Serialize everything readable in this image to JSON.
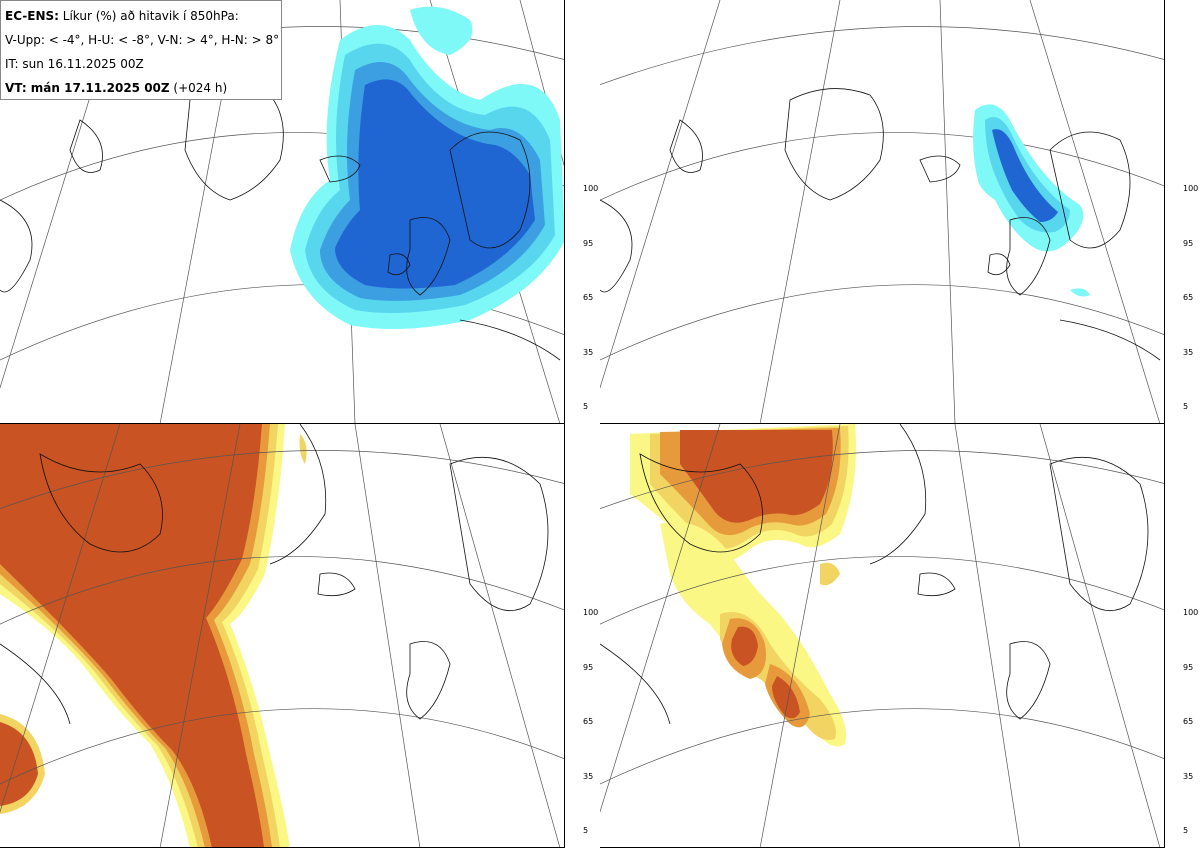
{
  "legend": {
    "line1_bold": "EC-ENS:",
    "line1_rest": " Líkur (%) að hitavik í 850hPa:",
    "line2": "V-Upp: < -4°, H-U: < -8°, V-N: > 4°, H-N: > 8°",
    "line3": "IT: sun 16.11.2025 00Z",
    "line4_bold": "VT: mán 17.11.2025 00Z",
    "line4_rest": " (+024 h)"
  },
  "colorbar_ticks": [
    "100",
    "95",
    "65",
    "35",
    "5"
  ],
  "colors": {
    "cold": [
      "#7ff8f8",
      "#58d6ee",
      "#3b9fe2",
      "#1f66d3"
    ],
    "warm": [
      "#fbf784",
      "#f2d462",
      "#e79a3c",
      "#c95322"
    ]
  },
  "panels": [
    {
      "id": "v-upp",
      "name": "top-left",
      "scheme": "cold"
    },
    {
      "id": "h-u",
      "name": "top-right",
      "scheme": "cold"
    },
    {
      "id": "v-n",
      "name": "bottom-left",
      "scheme": "warm"
    },
    {
      "id": "h-n",
      "name": "bottom-right",
      "scheme": "warm"
    }
  ]
}
